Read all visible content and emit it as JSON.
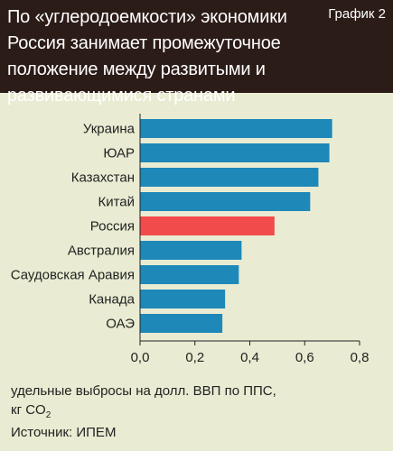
{
  "header": {
    "title": "По «углеродоемкости» экономики Россия занимает промежуточное положение между развитыми и развивающимися странами",
    "figure_label": "График 2"
  },
  "colors": {
    "bar": "#1e88b8",
    "highlight": "#f24b4b",
    "header_bg": "#2c1c17",
    "background": "#e9ecd2",
    "axis": "#222222"
  },
  "chart_data": {
    "type": "bar",
    "orientation": "horizontal",
    "categories": [
      "Украина",
      "ЮАР",
      "Казахстан",
      "Китай",
      "Россия",
      "Австралия",
      "Саудовская Аравия",
      "Канада",
      "ОАЭ"
    ],
    "values": [
      0.7,
      0.69,
      0.65,
      0.62,
      0.49,
      0.37,
      0.36,
      0.31,
      0.3
    ],
    "highlight": "Россия",
    "xlim": [
      0,
      0.8
    ],
    "xticks": [
      0,
      0.2,
      0.4,
      0.6,
      0.8
    ],
    "xtick_labels": [
      "0,0",
      "0,2",
      "0,4",
      "0,6",
      "0,8"
    ],
    "grid": false
  },
  "unit": {
    "line1": "удельные выбросы на долл. ВВП по ППС,",
    "line2_main": "кг CO",
    "line2_sub": "2"
  },
  "source": "Источник: ИПЕМ"
}
